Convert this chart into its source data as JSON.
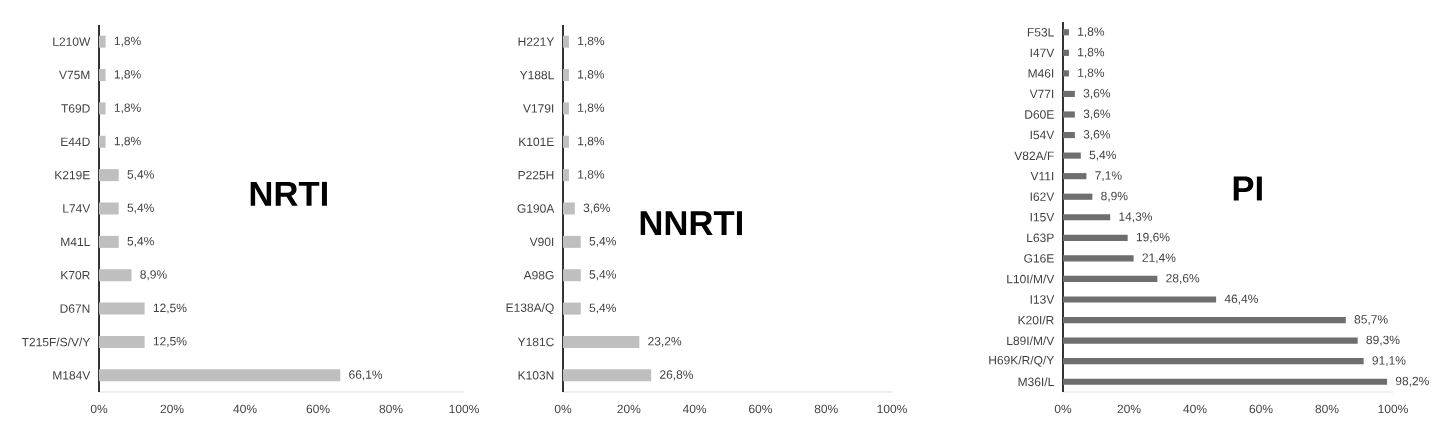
{
  "chart_data": [
    {
      "type": "bar",
      "orientation": "horizontal",
      "title": "NRTI",
      "color": "#bfbfbf",
      "categories": [
        "L210W",
        "V75M",
        "T69D",
        "E44D",
        "K219E",
        "L74V",
        "M41L",
        "K70R",
        "D67N",
        "T215F/S/V/Y",
        "M184V"
      ],
      "values": [
        1.8,
        1.8,
        1.8,
        1.8,
        5.4,
        5.4,
        5.4,
        8.9,
        12.5,
        12.5,
        66.1
      ],
      "value_labels": [
        "1,8%",
        "1,8%",
        "1,8%",
        "1,8%",
        "5,4%",
        "5,4%",
        "5,4%",
        "8,9%",
        "12,5%",
        "12,5%",
        "66,1%"
      ],
      "xlim": [
        0,
        100
      ],
      "xticks": [
        {
          "value": 0,
          "label": "0%"
        },
        {
          "value": 20,
          "label": "20%"
        },
        {
          "value": 40,
          "label": "40%"
        },
        {
          "value": 60,
          "label": "60%"
        },
        {
          "value": 80,
          "label": "80%"
        },
        {
          "value": 100,
          "label": "100%"
        }
      ]
    },
    {
      "type": "bar",
      "orientation": "horizontal",
      "title": "NNRTI",
      "color": "#bfbfbf",
      "categories": [
        "H221Y",
        "Y188L",
        "V179I",
        "K101E",
        "P225H",
        "G190A",
        "V90I",
        "A98G",
        "E138A/Q",
        "Y181C",
        "K103N"
      ],
      "values": [
        1.8,
        1.8,
        1.8,
        1.8,
        1.8,
        3.6,
        5.4,
        5.4,
        5.4,
        23.2,
        26.8
      ],
      "value_labels": [
        "1,8%",
        "1,8%",
        "1,8%",
        "1,8%",
        "1,8%",
        "3,6%",
        "5,4%",
        "5,4%",
        "5,4%",
        "23,2%",
        "26,8%"
      ],
      "xlim": [
        0,
        100
      ],
      "xticks": [
        {
          "value": 0,
          "label": "0%"
        },
        {
          "value": 20,
          "label": "20%"
        },
        {
          "value": 40,
          "label": "40%"
        },
        {
          "value": 60,
          "label": "60%"
        },
        {
          "value": 80,
          "label": "80%"
        },
        {
          "value": 100,
          "label": "100%"
        }
      ]
    },
    {
      "type": "bar",
      "orientation": "horizontal",
      "title": "PI",
      "color": "#6e6e6e",
      "categories": [
        "F53L",
        "I47V",
        "M46I",
        "V77I",
        "D60E",
        "I54V",
        "V82A/F",
        "V11I",
        "I62V",
        "I15V",
        "L63P",
        "G16E",
        "L10I/M/V",
        "I13V",
        "K20I/R",
        "L89I/M/V",
        "H69K/R/Q/Y",
        "M36I/L"
      ],
      "values": [
        1.8,
        1.8,
        1.8,
        3.6,
        3.6,
        3.6,
        5.4,
        7.1,
        8.9,
        14.3,
        19.6,
        21.4,
        28.6,
        46.4,
        85.7,
        89.3,
        91.1,
        98.2
      ],
      "value_labels": [
        "1,8%",
        "1,8%",
        "1,8%",
        "3,6%",
        "3,6%",
        "3,6%",
        "5,4%",
        "7,1%",
        "8,9%",
        "14,3%",
        "19,6%",
        "21,4%",
        "28,6%",
        "46,4%",
        "85,7%",
        "89,3%",
        "91,1%",
        "98,2%"
      ],
      "xlim": [
        0,
        100
      ],
      "xticks": [
        {
          "value": 0,
          "label": "0%"
        },
        {
          "value": 20,
          "label": "20%"
        },
        {
          "value": 40,
          "label": "40%"
        },
        {
          "value": 60,
          "label": "60%"
        },
        {
          "value": 80,
          "label": "80%"
        },
        {
          "value": 100,
          "label": "100%"
        }
      ]
    }
  ]
}
